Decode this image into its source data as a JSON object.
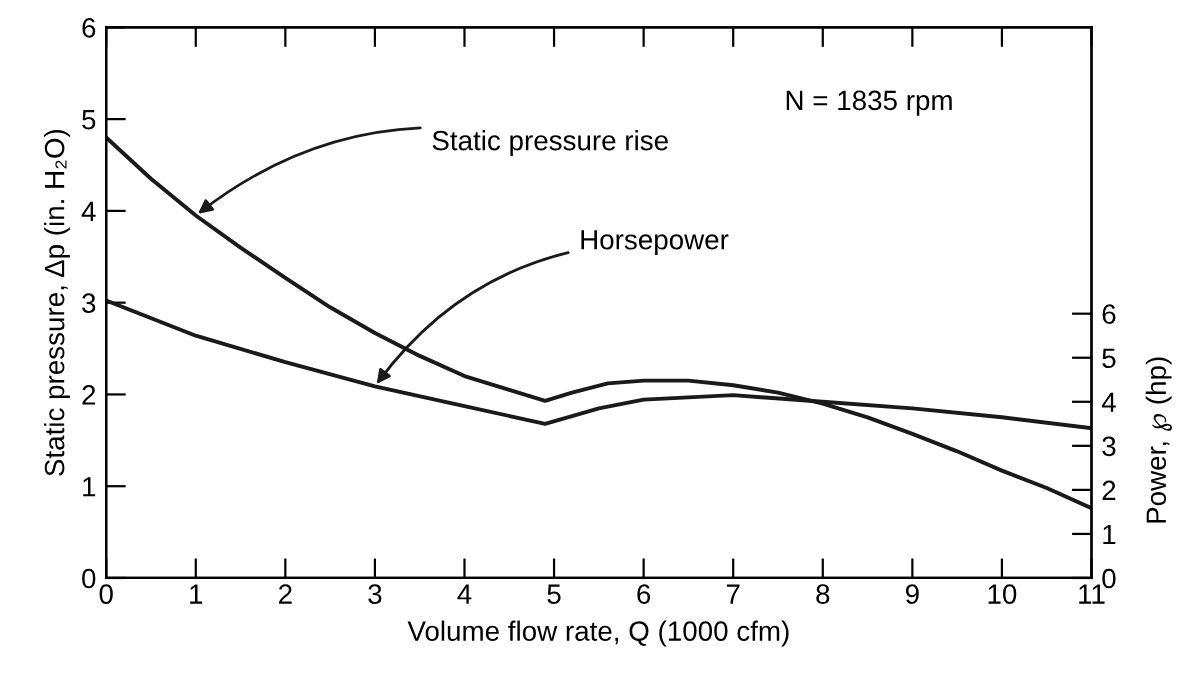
{
  "chart_data": {
    "type": "line",
    "xlabel": "Volume flow rate, Q (1000 cfm)",
    "ylabel": "Static pressure, Δp (in. H₂O)",
    "y2label": "Power, ℘ (hp)",
    "xlim": [
      0,
      11
    ],
    "xticks": [
      0,
      1,
      2,
      3,
      4,
      5,
      6,
      7,
      8,
      9,
      10,
      11
    ],
    "ylim": [
      0,
      6
    ],
    "yticks": [
      0,
      1,
      2,
      3,
      4,
      5,
      6
    ],
    "y2lim": [
      0,
      12.5
    ],
    "y2ticks": [
      0,
      1,
      2,
      3,
      4,
      5,
      6
    ],
    "grid": false,
    "legend": false,
    "marker": "none",
    "line_style": "solid",
    "annotations": [
      "N = 1835 rpm"
    ],
    "series": [
      {
        "name": "Static pressure rise",
        "color": "#1a1a1a",
        "x": [
          0,
          0.5,
          1,
          1.5,
          2,
          2.5,
          3,
          3.5,
          4,
          4.5,
          4.9,
          5.2,
          5.6,
          6,
          6.5,
          7,
          7.5,
          8,
          8.5,
          9,
          9.5,
          10,
          10.5,
          11
        ],
        "values": [
          4.8,
          4.35,
          3.95,
          3.6,
          3.27,
          2.95,
          2.67,
          2.42,
          2.2,
          2.05,
          1.93,
          2.02,
          2.12,
          2.15,
          2.15,
          2.1,
          2.02,
          1.9,
          1.75,
          1.57,
          1.38,
          1.17,
          0.98,
          0.76
        ]
      },
      {
        "name": "Horsepower",
        "color": "#1a1a1a",
        "axis": "y2",
        "x": [
          0,
          1,
          2,
          3,
          4,
          4.9,
          5.5,
          6,
          7,
          8,
          9,
          10,
          11
        ],
        "values": [
          6.3,
          5.5,
          4.9,
          4.35,
          3.9,
          3.5,
          3.85,
          4.05,
          4.15,
          4.0,
          3.85,
          3.65,
          3.4
        ]
      }
    ]
  }
}
